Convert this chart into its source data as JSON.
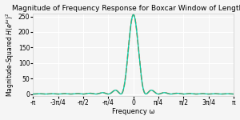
{
  "title": "Magnitude of Frequency Response for Boxcar Window of Length 16",
  "xlabel": "Frequency ω",
  "ylabel": "Magnitude-Squared H(e^{jω})^2",
  "N": 16,
  "omega_range": [
    -3.14159265358979,
    3.14159265358979
  ],
  "xlim": [
    -3.14159265358979,
    3.14159265358979
  ],
  "ylim": [
    -5,
    260
  ],
  "line_color": "#00c8a0",
  "dashed_color": "#ff7043",
  "title_fontsize": 6.5,
  "label_fontsize": 6,
  "tick_fontsize": 5.5,
  "background_color": "#f5f5f5",
  "grid_color": "#ffffff",
  "xticks": [
    -3.14159265358979,
    -2.35619449019234,
    -1.5707963267949,
    -0.785398163397448,
    0,
    0.785398163397448,
    1.5707963267949,
    2.35619449019234,
    3.14159265358979
  ],
  "xtick_labels": [
    "-π",
    "-3π/4",
    "-π/2",
    "-π/4",
    "0",
    "π/4",
    "π/2",
    "3π/4",
    "π"
  ]
}
